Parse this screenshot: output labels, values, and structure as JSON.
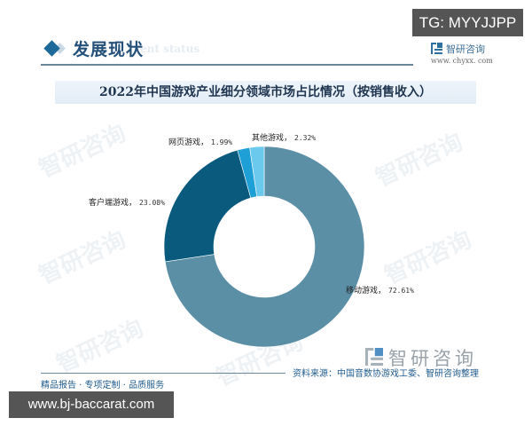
{
  "header": {
    "section_title": "发展现状",
    "section_subtitle": "ent status",
    "brand_name": "智研咨询",
    "brand_url": "www. chyxx. com"
  },
  "overlay": {
    "tg_badge": "TG: MYYJJPP",
    "url_badge": "www.bj-baccarat.com"
  },
  "footer": {
    "brand_name": "智研咨询",
    "source": "资料来源：中国音数协游戏工委、智研咨询整理",
    "tagline": "精品报告 · 专项定制 · 品质服务"
  },
  "watermarks": [
    "智研咨询",
    "智研咨询",
    "智研咨询",
    "智研咨询",
    "智研咨询",
    "智研咨询"
  ],
  "chart_data": {
    "type": "pie",
    "variant": "donut",
    "title": "2022年中国游戏产业细分领域市场占比情况（按销售收入）",
    "categories": [
      "移动游戏",
      "客户端游戏",
      "网页游戏",
      "其他游戏"
    ],
    "values": [
      72.61,
      23.08,
      1.99,
      2.32
    ],
    "labels": [
      "移动游戏，72.61%",
      "客户端游戏，23.08%",
      "网页游戏，1.99%",
      "其他游戏，2.32%"
    ],
    "value_text": [
      "72.61%",
      "23.08%",
      "1.99%",
      "2.32%"
    ],
    "colors": [
      "#5b8fa6",
      "#0a5a7e",
      "#1e9fd6",
      "#6cc9ee"
    ],
    "unit": "%",
    "start_angle": "12 o'clock",
    "direction": "clockwise",
    "legend": "none (direct labels)"
  }
}
